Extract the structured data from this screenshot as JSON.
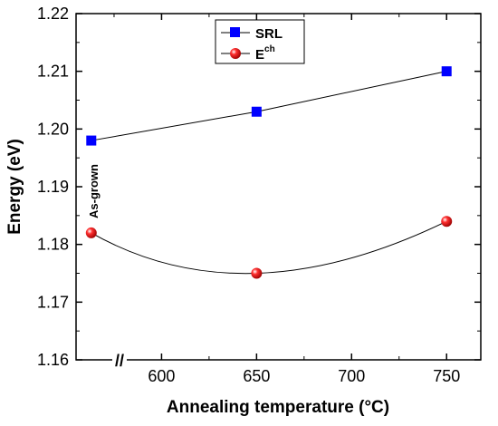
{
  "chart_data": {
    "type": "line",
    "xlabel": "Annealing temperature (°C)",
    "ylabel": "Energy (eV)",
    "x_ticks": [
      "600",
      "650",
      "700",
      "750"
    ],
    "y_ticks": [
      "1.16",
      "1.17",
      "1.18",
      "1.19",
      "1.20",
      "1.21",
      "1.22"
    ],
    "xlim": [
      555,
      768
    ],
    "ylim": [
      1.16,
      1.22
    ],
    "axis_break_marker": "//",
    "annotation": "As-grown",
    "grid": false,
    "legend_placement": "top-center",
    "categories": [
      "As-grown",
      "650",
      "750"
    ],
    "series": [
      {
        "name": "SRL",
        "marker": "square",
        "color": "#0000ff",
        "x": [
          563,
          650,
          750
        ],
        "values": [
          1.198,
          1.203,
          1.21
        ]
      },
      {
        "name": "E",
        "name_superscript": "ch",
        "marker": "sphere",
        "color": "#ff0000",
        "x": [
          563,
          650,
          750
        ],
        "values": [
          1.182,
          1.175,
          1.184
        ]
      }
    ]
  }
}
